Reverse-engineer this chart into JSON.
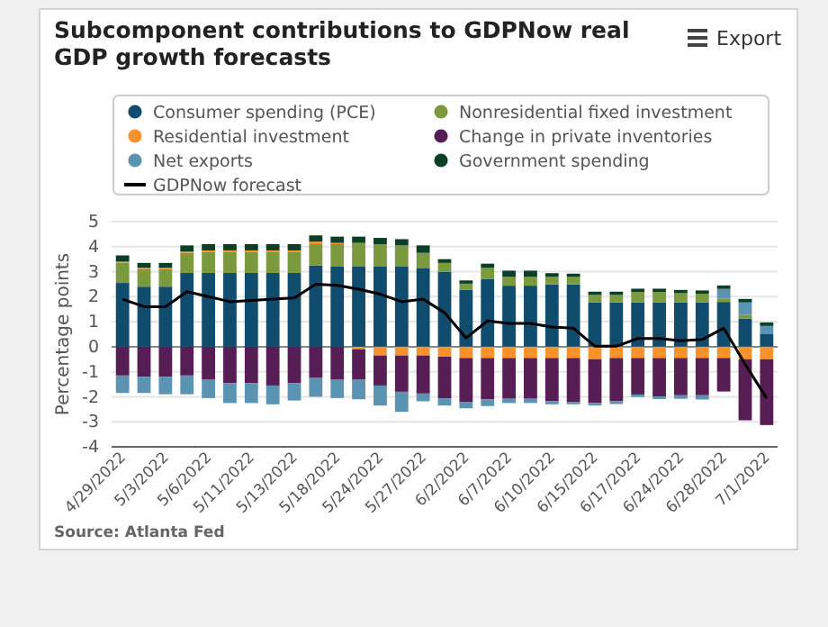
{
  "chart_data": {
    "type": "bar",
    "stacked": true,
    "title": "Subcomponent contributions to GDPNow real GDP growth forecasts",
    "ylabel": "Percentage points",
    "categories": [
      "4/29/2022",
      null,
      "5/3/2022",
      null,
      "5/6/2022",
      null,
      "5/11/2022",
      null,
      "5/13/2022",
      null,
      "5/18/2022",
      null,
      "5/24/2022",
      null,
      "5/27/2022",
      null,
      "6/2/2022",
      null,
      "6/7/2022",
      null,
      "6/10/2022",
      null,
      "6/15/2022",
      null,
      "6/17/2022",
      null,
      "6/24/2022",
      null,
      "6/28/2022",
      null,
      "7/1/2022"
    ],
    "series": [
      {
        "name": "Consumer spending (PCE)",
        "color": "#0f4c6e",
        "values": [
          2.55,
          2.4,
          2.4,
          2.95,
          2.95,
          2.95,
          2.95,
          2.95,
          2.95,
          3.25,
          3.2,
          3.2,
          3.2,
          3.2,
          3.15,
          3.0,
          2.27,
          2.7,
          2.44,
          2.44,
          2.49,
          2.49,
          1.77,
          1.77,
          1.77,
          1.77,
          1.77,
          1.77,
          1.79,
          1.12,
          0.5
        ]
      },
      {
        "name": "Nonresidential fixed investment",
        "color": "#7a9a3d",
        "values": [
          0.8,
          0.7,
          0.7,
          0.8,
          0.85,
          0.85,
          0.85,
          0.85,
          0.85,
          0.85,
          0.9,
          0.95,
          0.9,
          0.85,
          0.6,
          0.35,
          0.25,
          0.45,
          0.35,
          0.35,
          0.3,
          0.3,
          0.3,
          0.3,
          0.42,
          0.42,
          0.37,
          0.35,
          0.14,
          0.15,
          0
        ]
      },
      {
        "name": "Residential investment",
        "color": "#f7922d",
        "values": [
          0.05,
          0.05,
          0.05,
          0.05,
          0.05,
          0.05,
          0.05,
          0.05,
          0.05,
          0.1,
          0.05,
          -0.1,
          -0.35,
          -0.35,
          -0.35,
          -0.4,
          -0.45,
          -0.45,
          -0.45,
          -0.45,
          -0.45,
          -0.45,
          -0.5,
          -0.45,
          -0.45,
          -0.45,
          -0.45,
          -0.45,
          -0.45,
          -0.5,
          -0.5
        ]
      },
      {
        "name": "Change in private inventories",
        "color": "#571d55",
        "values": [
          -1.15,
          -1.2,
          -1.2,
          -1.15,
          -1.3,
          -1.45,
          -1.45,
          -1.55,
          -1.45,
          -1.25,
          -1.3,
          -1.2,
          -1.2,
          -1.45,
          -1.52,
          -1.66,
          -1.77,
          -1.65,
          -1.63,
          -1.63,
          -1.73,
          -1.77,
          -1.75,
          -1.72,
          -1.46,
          -1.54,
          -1.49,
          -1.49,
          -1.34,
          -2.44,
          -2.63
        ]
      },
      {
        "name": "Net exports",
        "color": "#5b93b3",
        "values": [
          -0.7,
          -0.65,
          -0.7,
          -0.75,
          -0.75,
          -0.8,
          -0.8,
          -0.75,
          -0.7,
          -0.75,
          -0.75,
          -0.8,
          -0.8,
          -0.8,
          -0.31,
          -0.29,
          -0.24,
          -0.27,
          -0.17,
          -0.17,
          -0.12,
          -0.08,
          -0.1,
          -0.12,
          -0.1,
          -0.1,
          -0.14,
          -0.17,
          0.38,
          0.5,
          0.33
        ]
      },
      {
        "name": "Government spending",
        "color": "#0c3f28",
        "values": [
          0.25,
          0.2,
          0.2,
          0.25,
          0.25,
          0.25,
          0.25,
          0.25,
          0.25,
          0.25,
          0.25,
          0.25,
          0.25,
          0.25,
          0.3,
          0.15,
          0.13,
          0.17,
          0.25,
          0.25,
          0.15,
          0.13,
          0.13,
          0.13,
          0.13,
          0.13,
          0.13,
          0.13,
          0.14,
          0.14,
          0.14
        ]
      },
      {
        "name": "GDPNow forecast",
        "type": "line",
        "color": "#000000",
        "values": [
          1.9,
          1.6,
          1.6,
          2.2,
          2.0,
          1.8,
          1.85,
          1.9,
          1.95,
          2.5,
          2.45,
          2.3,
          2.1,
          1.8,
          1.9,
          1.36,
          0.35,
          1.03,
          0.93,
          0.93,
          0.79,
          0.74,
          0.02,
          0.02,
          0.33,
          0.33,
          0.24,
          0.29,
          0.74,
          -0.7,
          -2.06
        ]
      }
    ],
    "ylim": [
      -4,
      5
    ],
    "yticks": [
      -4,
      -3,
      -2,
      -1,
      0,
      1,
      2,
      3,
      4,
      5
    ],
    "grid": "y",
    "legend": "top",
    "marker": "none",
    "annotations": [
      "Source: Atlanta Fed",
      "Export"
    ]
  }
}
